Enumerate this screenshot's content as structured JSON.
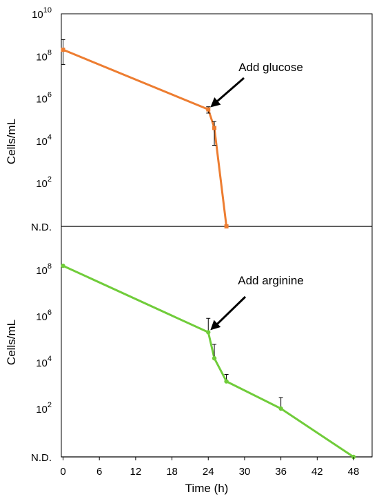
{
  "chart_data": [
    {
      "type": "line",
      "panel": "top",
      "ylabel": "Cells/mL",
      "y_scale": "log10",
      "y_tick_labels": [
        {
          "base": "10",
          "exp": "10",
          "value": 10000000000.0
        },
        {
          "base": "10",
          "exp": "8",
          "value": 100000000.0
        },
        {
          "base": "10",
          "exp": "6",
          "value": 1000000.0
        },
        {
          "base": "10",
          "exp": "4",
          "value": 10000.0
        },
        {
          "base": "10",
          "exp": "2",
          "value": 100.0
        }
      ],
      "nd_label": "N.D.",
      "series": [
        {
          "color": "#ED7D31",
          "x": [
            0,
            24,
            25,
            27
          ],
          "y": [
            200000000.0,
            300000.0,
            40000.0,
            null
          ],
          "not_detected_at_x": [
            27
          ],
          "y_error_low": [
            40000000.0,
            200000.0,
            6000.0,
            null
          ],
          "y_error_high": [
            600000000.0,
            400000.0,
            80000.0,
            null
          ]
        }
      ],
      "annotation": {
        "text": "Add glucose",
        "arrow_to": {
          "x": 24,
          "y": 300000.0
        }
      }
    },
    {
      "type": "line",
      "panel": "bottom",
      "ylabel": "Cells/mL",
      "xlabel": "Time (h)",
      "y_scale": "log10",
      "x_ticks": [
        0,
        6,
        12,
        18,
        24,
        30,
        36,
        42,
        48
      ],
      "xlim": [
        0,
        50
      ],
      "y_tick_labels": [
        {
          "base": "10",
          "exp": "8",
          "value": 100000000.0
        },
        {
          "base": "10",
          "exp": "6",
          "value": 1000000.0
        },
        {
          "base": "10",
          "exp": "4",
          "value": 10000.0
        },
        {
          "base": "10",
          "exp": "2",
          "value": 100.0
        }
      ],
      "nd_label": "N.D.",
      "series": [
        {
          "color": "#70CC3A",
          "x": [
            0,
            24,
            25,
            27,
            36,
            48
          ],
          "y": [
            150000000.0,
            200000.0,
            15000.0,
            1500.0,
            100,
            null
          ],
          "not_detected_at_x": [
            48
          ],
          "y_error_low": [
            null,
            null,
            null,
            null,
            null,
            null
          ],
          "y_error_high": [
            null,
            800000.0,
            60000.0,
            3000.0,
            300,
            null
          ]
        }
      ],
      "annotation": {
        "text": "Add arginine",
        "arrow_to": {
          "x": 24,
          "y": 200000.0
        }
      }
    }
  ]
}
